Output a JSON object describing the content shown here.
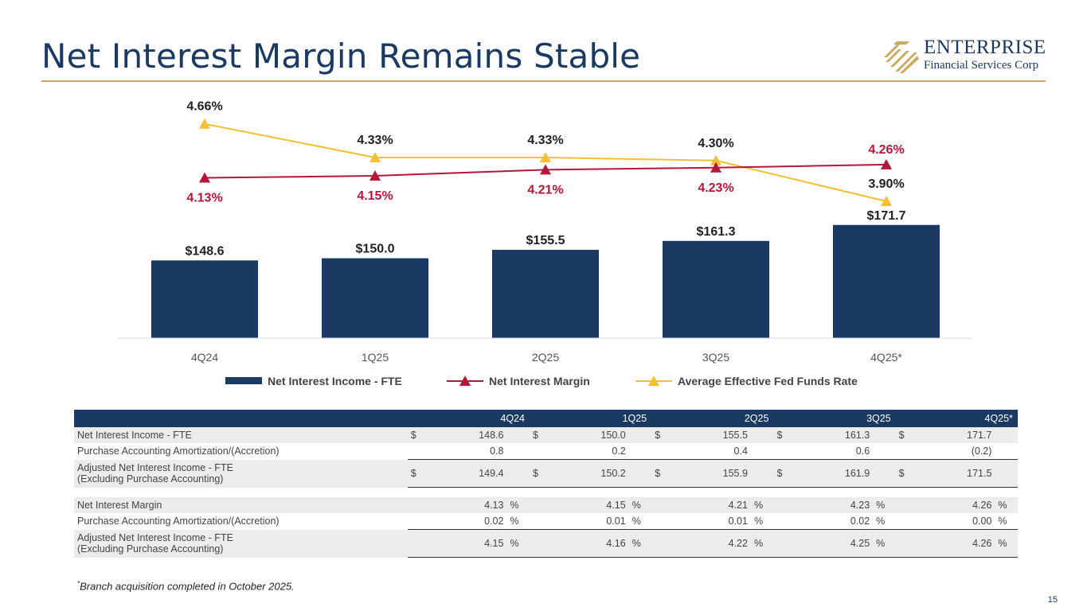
{
  "title": "Net Interest Margin Remains Stable",
  "logo": {
    "line1": "ENTERPRISE",
    "line2": "Financial Services Corp"
  },
  "colors": {
    "navy": "#1b3a63",
    "red": "#b5173a",
    "gold": "#f6bf33",
    "rule": "#c8aa62"
  },
  "chart_data": {
    "type": "bar",
    "categories": [
      "4Q24",
      "1Q25",
      "2Q25",
      "3Q25",
      "4Q25*"
    ],
    "series": [
      {
        "name": "Net Interest Income - FTE",
        "type": "bar",
        "values": [
          148.6,
          150.0,
          155.5,
          161.3,
          171.7
        ],
        "labels": [
          "$148.6",
          "$150.0",
          "$155.5",
          "$161.3",
          "$171.7"
        ]
      },
      {
        "name": "Net Interest Margin",
        "type": "line",
        "values": [
          4.13,
          4.15,
          4.21,
          4.23,
          4.26
        ],
        "labels": [
          "4.13%",
          "4.15%",
          "4.21%",
          "4.23%",
          "4.26%"
        ]
      },
      {
        "name": "Average Effective Fed Funds Rate",
        "type": "line",
        "values": [
          4.66,
          4.33,
          4.33,
          4.3,
          3.9
        ],
        "labels": [
          "4.66%",
          "4.33%",
          "4.33%",
          "4.30%",
          "3.90%"
        ]
      }
    ],
    "legend": "bottom",
    "grid": false
  },
  "table": {
    "headers": [
      "4Q24",
      "1Q25",
      "2Q25",
      "3Q25",
      "4Q25*"
    ],
    "rows": [
      {
        "label": "Net Interest Income - FTE",
        "currency": "$",
        "values": [
          "148.6",
          "150.0",
          "155.5",
          "161.3",
          "171.7"
        ]
      },
      {
        "label": "Purchase Accounting Amortization/(Accretion)",
        "values": [
          "0.8",
          "0.2",
          "0.4",
          "0.6",
          "(0.2)"
        ]
      },
      {
        "label": "Adjusted Net Interest Income - FTE",
        "label2": "(Excluding Purchase Accounting)",
        "currency": "$",
        "values": [
          "149.4",
          "150.2",
          "155.9",
          "161.9",
          "171.5"
        ]
      },
      {
        "label": "Net Interest Margin",
        "pct": "%",
        "values": [
          "4.13",
          "4.15",
          "4.21",
          "4.23",
          "4.26"
        ]
      },
      {
        "label": "Purchase Accounting Amortization/(Accretion)",
        "pct": "%",
        "values": [
          "0.02",
          "0.01",
          "0.01",
          "0.02",
          "0.00"
        ]
      },
      {
        "label": "Adjusted Net Interest Income - FTE",
        "label2": "(Excluding Purchase Accounting)",
        "pct": "%",
        "values": [
          "4.15",
          "4.16",
          "4.22",
          "4.25",
          "4.26"
        ]
      }
    ]
  },
  "footnote": {
    "mark": "*",
    "text": "Branch acquisition completed in October 2025."
  },
  "page_number": "15"
}
